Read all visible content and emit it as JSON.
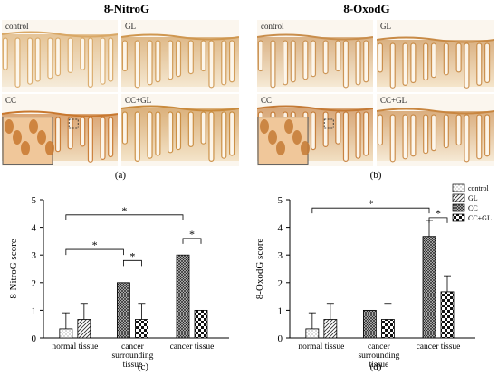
{
  "panels": {
    "a": {
      "title": "8-NitroG",
      "label": "(a)",
      "tiles": [
        {
          "label": "control",
          "tissue": "#f3e6cf",
          "stain": "#d9a866"
        },
        {
          "label": "GL",
          "tissue": "#f2e1c3",
          "stain": "#cf9750"
        },
        {
          "label": "CC",
          "tissue": "#ebcfa5",
          "stain": "#c8782f"
        },
        {
          "label": "CC+GL",
          "tissue": "#f1dcb8",
          "stain": "#c98a3c"
        }
      ]
    },
    "b": {
      "title": "8-OxodG",
      "label": "(b)",
      "tiles": [
        {
          "label": "control",
          "tissue": "#f3e3c9",
          "stain": "#c98e4c"
        },
        {
          "label": "GL",
          "tissue": "#f2ddba",
          "stain": "#c88a45"
        },
        {
          "label": "CC",
          "tissue": "#edd4ad",
          "stain": "#c47a35"
        },
        {
          "label": "CC+GL",
          "tissue": "#f3e3c8",
          "stain": "#c88640"
        }
      ]
    },
    "c": {
      "label": "(c)"
    },
    "d": {
      "label": "(d)"
    }
  },
  "legend": {
    "entries": [
      "control",
      "GL",
      "CC",
      "CC+GL"
    ]
  },
  "chart_data": [
    {
      "type": "bar",
      "panel": "c",
      "ylabel": "8-NitroG score",
      "ylim": [
        0,
        5
      ],
      "yticks": [
        0,
        1,
        2,
        3,
        4,
        5
      ],
      "groups": [
        {
          "label_lines": [
            "normal tissue"
          ],
          "bars": [
            {
              "series": "control",
              "value": 0.33,
              "error": 0.58
            },
            {
              "series": "GL",
              "value": 0.67,
              "error": 0.58
            }
          ]
        },
        {
          "label_lines": [
            "cancer",
            "surrounding",
            "tissue"
          ],
          "bars": [
            {
              "series": "CC",
              "value": 2.0,
              "error": 0
            },
            {
              "series": "CC+GL",
              "value": 0.67,
              "error": 0.58
            }
          ]
        },
        {
          "label_lines": [
            "cancer tissue"
          ],
          "bars": [
            {
              "series": "CC",
              "value": 3.0,
              "error": 0
            },
            {
              "series": "CC+GL",
              "value": 1.0,
              "error": 0
            }
          ]
        }
      ],
      "significance": [
        {
          "from": [
            0,
            0
          ],
          "to": [
            2,
            0
          ],
          "height": 4.45,
          "mark": "*"
        },
        {
          "from": [
            0,
            0
          ],
          "to": [
            1,
            0
          ],
          "height": 3.2,
          "mark": "*"
        },
        {
          "from": [
            1,
            0
          ],
          "to": [
            1,
            1
          ],
          "height": 2.8,
          "mark": "*"
        },
        {
          "from": [
            2,
            0
          ],
          "to": [
            2,
            1
          ],
          "height": 3.6,
          "mark": "*"
        }
      ]
    },
    {
      "type": "bar",
      "panel": "d",
      "ylabel": "8-OxodG score",
      "ylim": [
        0,
        5
      ],
      "yticks": [
        0,
        1,
        2,
        3,
        4,
        5
      ],
      "groups": [
        {
          "label_lines": [
            "normal tissue"
          ],
          "bars": [
            {
              "series": "control",
              "value": 0.33,
              "error": 0.58
            },
            {
              "series": "GL",
              "value": 0.67,
              "error": 0.58
            }
          ]
        },
        {
          "label_lines": [
            "cancer",
            "surrounding",
            "tissue"
          ],
          "bars": [
            {
              "series": "CC",
              "value": 1.0,
              "error": 0
            },
            {
              "series": "CC+GL",
              "value": 0.67,
              "error": 0.58
            }
          ]
        },
        {
          "label_lines": [
            "cancer tissue"
          ],
          "bars": [
            {
              "series": "CC",
              "value": 3.67,
              "error": 0.58
            },
            {
              "series": "CC+GL",
              "value": 1.67,
              "error": 0.58
            }
          ]
        }
      ],
      "significance": [
        {
          "from": [
            0,
            0
          ],
          "to": [
            2,
            0
          ],
          "height": 4.7,
          "mark": "*"
        },
        {
          "from": [
            2,
            0
          ],
          "to": [
            2,
            1
          ],
          "height": 4.35,
          "mark": "*"
        }
      ]
    }
  ]
}
